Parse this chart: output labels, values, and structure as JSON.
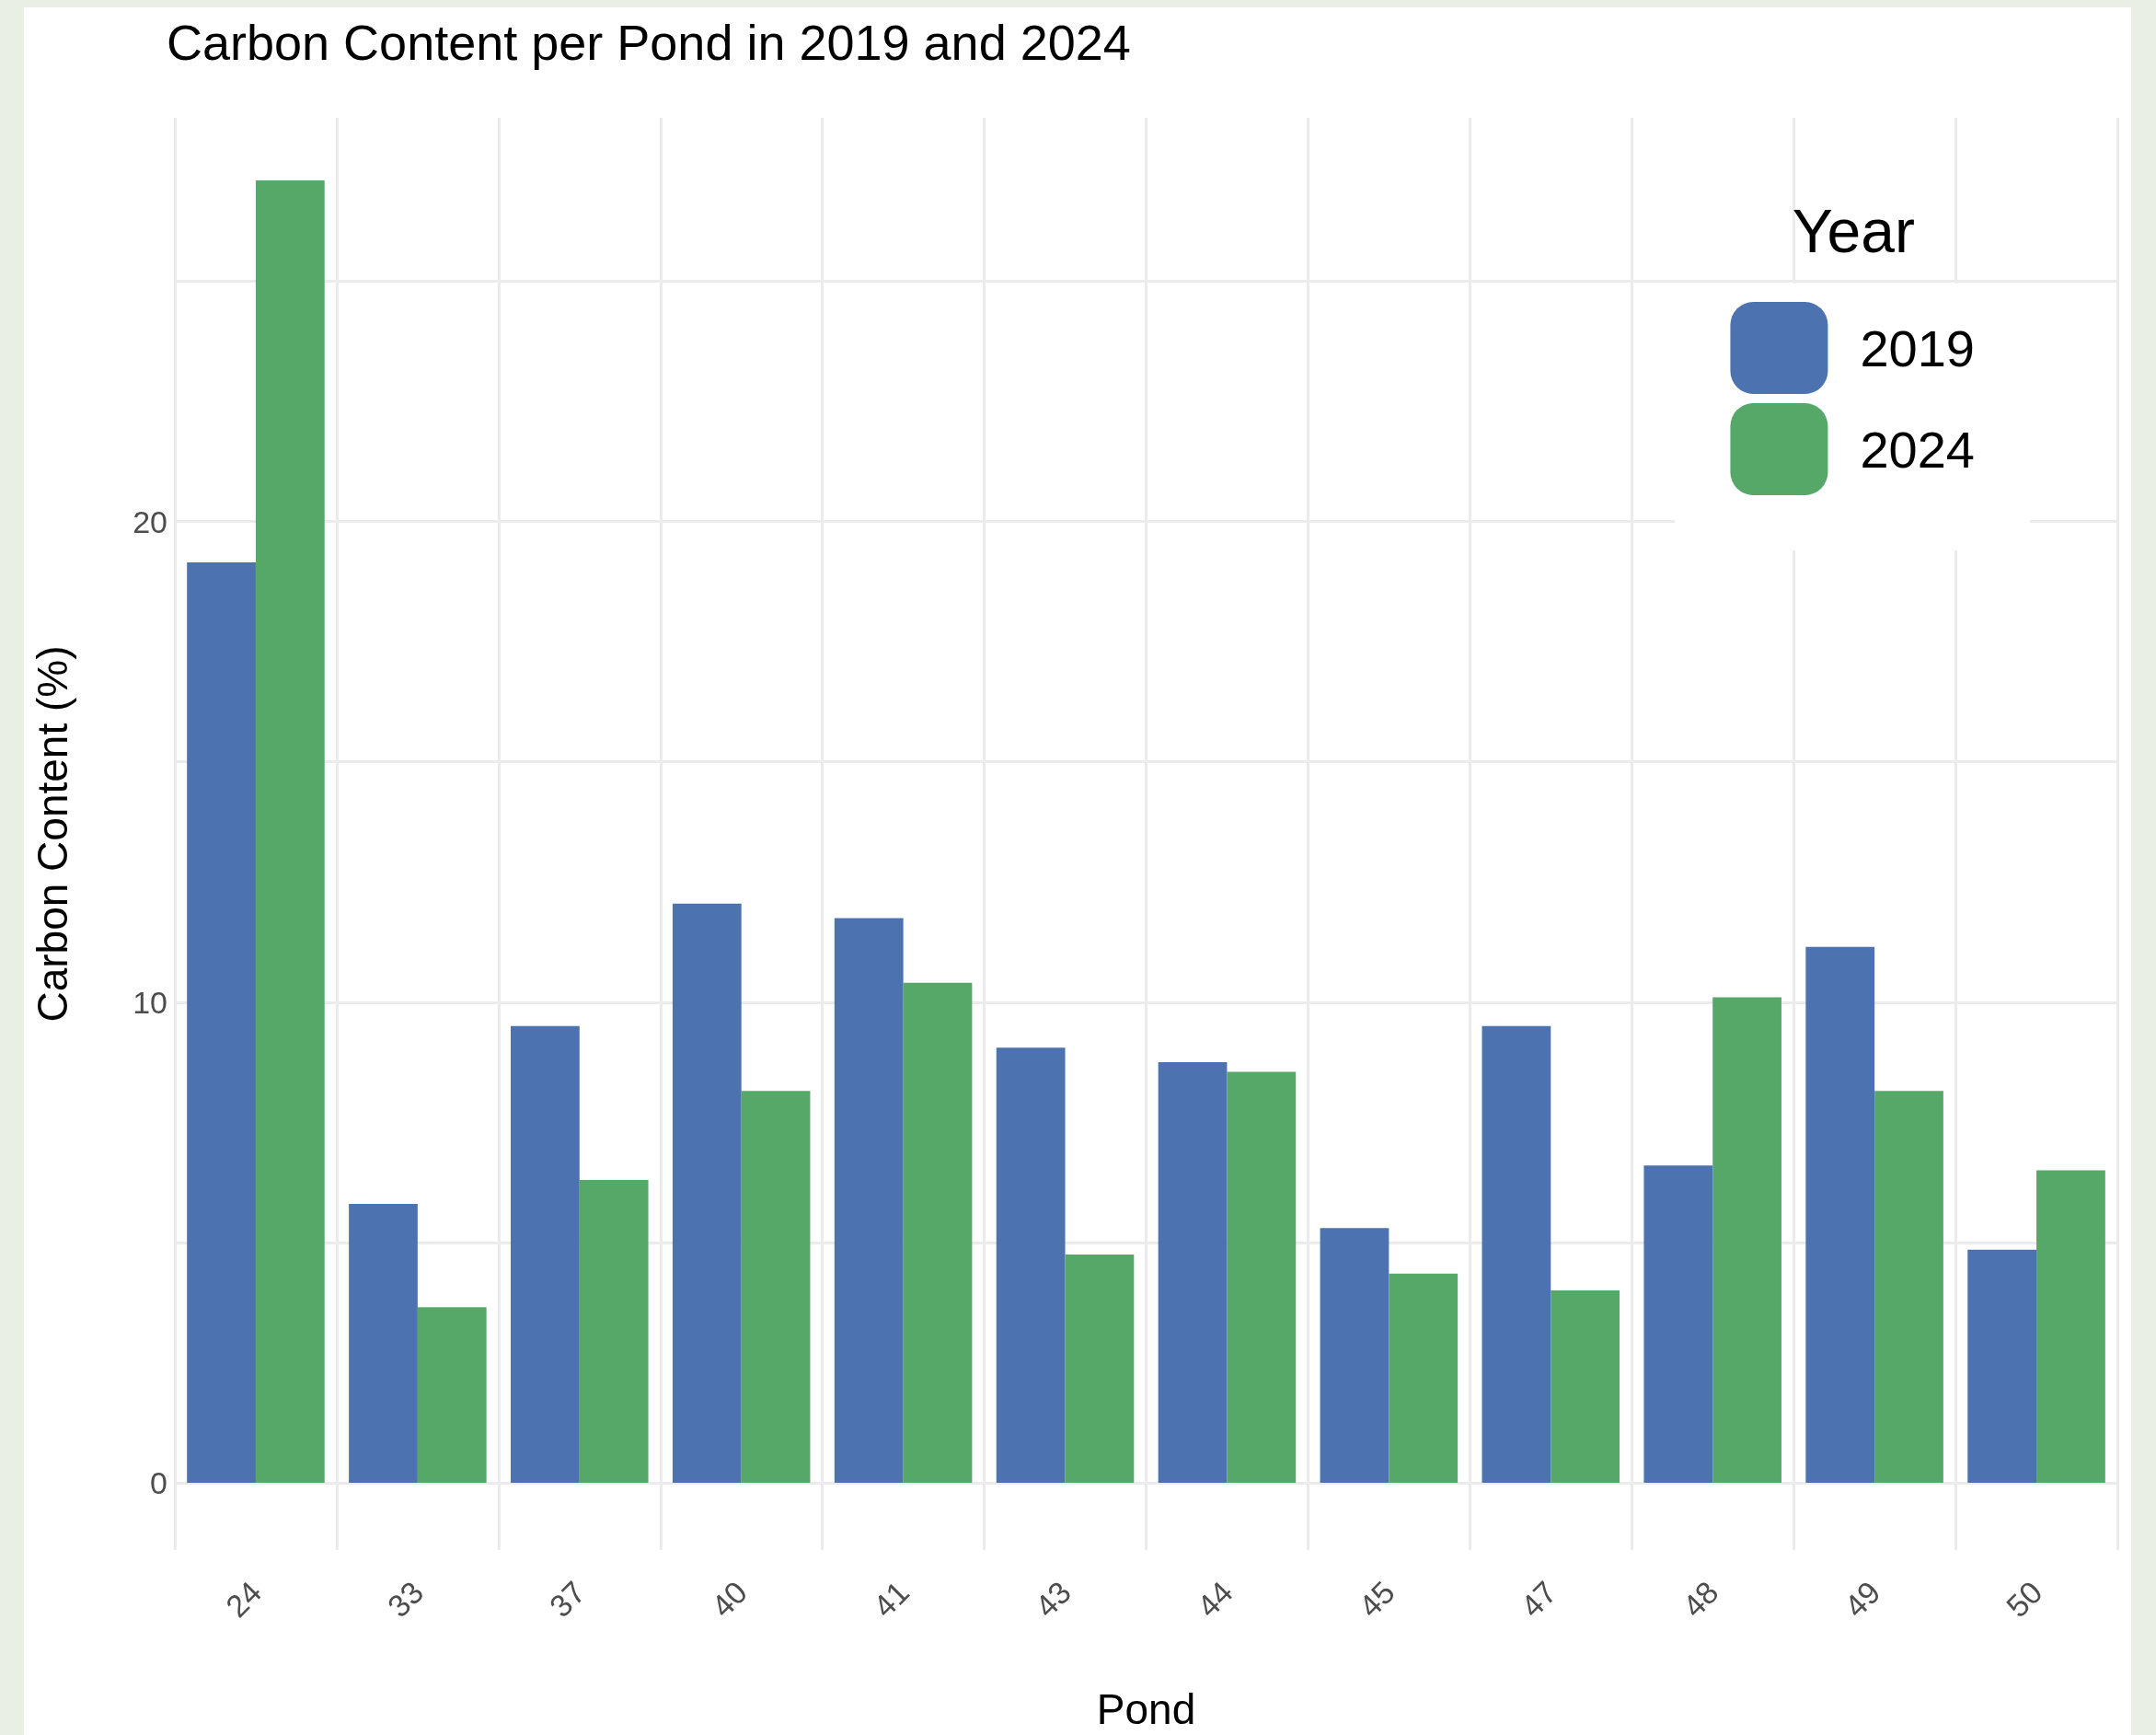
{
  "chart_data": {
    "type": "bar",
    "title": "Carbon Content per Pond in 2019 and 2024",
    "xlabel": "Pond",
    "ylabel": "Carbon Content (%)",
    "legend_title": "Year",
    "categories": [
      "24",
      "33",
      "37",
      "40",
      "41",
      "43",
      "44",
      "45",
      "47",
      "48",
      "49",
      "50"
    ],
    "series": [
      {
        "name": "2019",
        "color": "#4c72b0",
        "values": [
          19.15,
          5.8,
          9.5,
          12.05,
          11.75,
          9.05,
          8.75,
          5.3,
          9.5,
          6.6,
          11.15,
          4.85
        ]
      },
      {
        "name": "2024",
        "color": "#55a868",
        "values": [
          27.1,
          3.65,
          6.3,
          8.15,
          10.4,
          4.75,
          8.55,
          4.35,
          4.0,
          10.1,
          8.15,
          6.5
        ]
      }
    ],
    "ylim": [
      -1.4,
      28.4
    ],
    "yticks": [
      0,
      {
        "value": 5,
        "label": null
      },
      10,
      {
        "value": 15,
        "label": null
      },
      20,
      {
        "value": 25,
        "label": null
      }
    ],
    "grid": true,
    "legend": "top right"
  }
}
